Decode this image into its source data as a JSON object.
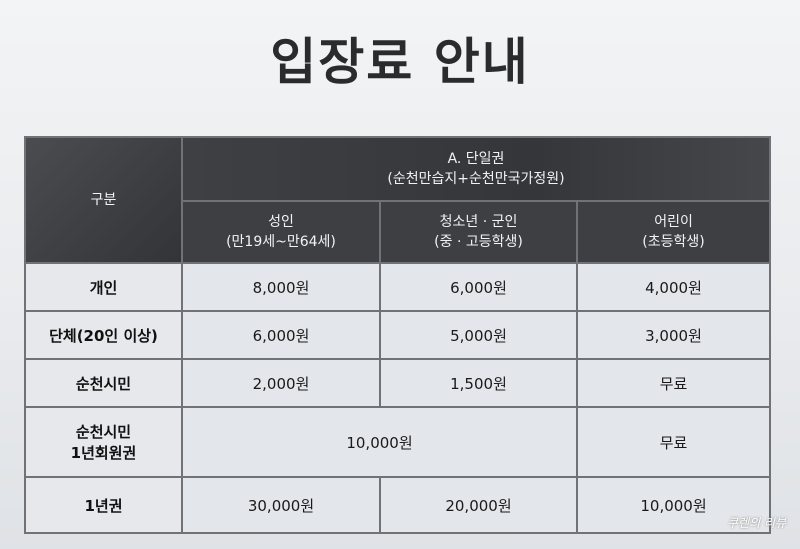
{
  "title": "입장료 안내",
  "header": {
    "category": "구분",
    "group_line1": "A. 단일권",
    "group_line2": "(순천만습지+순천만국가정원)",
    "columns": [
      {
        "line1": "성인",
        "line2": "(만19세~만64세)"
      },
      {
        "line1": "청소년 · 군인",
        "line2": "(중 · 고등학생)"
      },
      {
        "line1": "어린이",
        "line2": "(초등학생)"
      }
    ]
  },
  "rows": [
    {
      "label": "개인",
      "adult": "8,000원",
      "youth": "6,000원",
      "child": "4,000원"
    },
    {
      "label": "단체(20인 이상)",
      "adult": "6,000원",
      "youth": "5,000원",
      "child": "3,000원"
    },
    {
      "label": "순천시민",
      "adult": "2,000원",
      "youth": "1,500원",
      "child": "무료"
    },
    {
      "label_line1": "순천시민",
      "label_line2": "1년회원권",
      "adult_youth": "10,000원",
      "child": "무료"
    },
    {
      "label": "1년권",
      "adult": "30,000원",
      "youth": "20,000원",
      "child": "10,000원"
    }
  ],
  "watermark": "쿠렌의 리뷰"
}
